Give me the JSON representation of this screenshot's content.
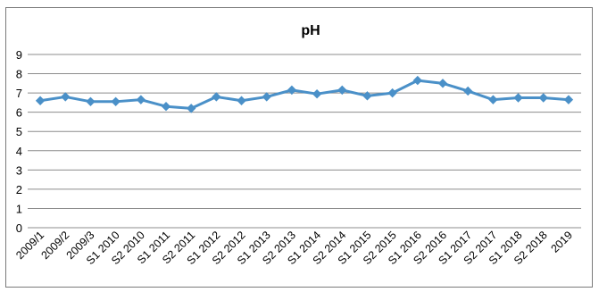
{
  "chart_data": {
    "type": "line",
    "title": "pH",
    "xlabel": "",
    "ylabel": "",
    "ylim": [
      0,
      9
    ],
    "y_ticks": [
      0,
      1,
      2,
      3,
      4,
      5,
      6,
      7,
      8,
      9
    ],
    "grid": true,
    "legend": "none",
    "categories": [
      "2009/1",
      "2009/2",
      "2009/3",
      "S1 2010",
      "S2 2010",
      "S1 2011",
      "S2 2011",
      "S1 2012",
      "S2 2012",
      "S1 2013",
      "S2 2013",
      "S1 2014",
      "S2 2014",
      "S1 2015",
      "S2 2015",
      "S1 2016",
      "S2 2016",
      "S1 2017",
      "S2 2017",
      "S1 2018",
      "S2 2018",
      "2019"
    ],
    "series": [
      {
        "values": [
          6.6,
          6.8,
          6.55,
          6.55,
          6.65,
          6.3,
          6.2,
          6.8,
          6.6,
          6.8,
          7.15,
          6.95,
          7.15,
          6.85,
          7.0,
          7.65,
          7.5,
          7.1,
          6.65,
          6.75,
          6.75,
          6.65
        ],
        "color": "#4a90c8"
      }
    ]
  }
}
